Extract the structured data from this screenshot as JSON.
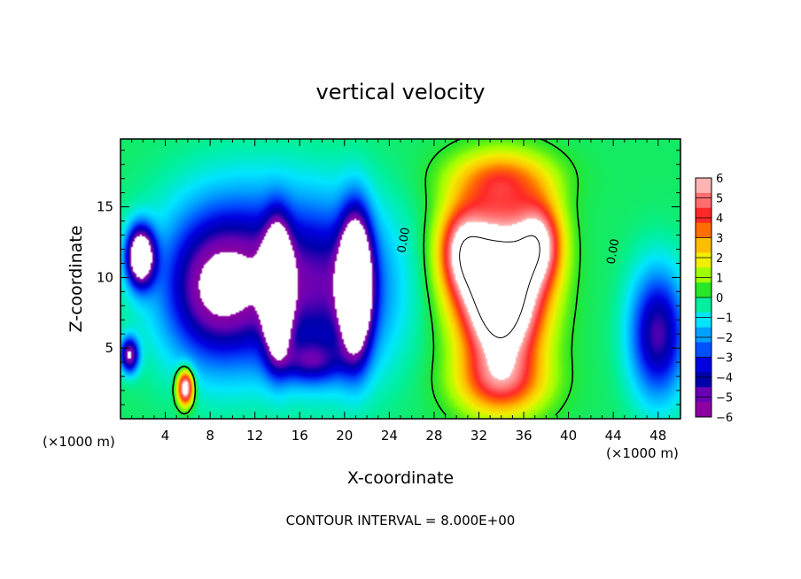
{
  "chart_data": {
    "type": "heatmap",
    "title": "vertical velocity",
    "xlabel": "X-coordinate",
    "ylabel": "Z-coordinate",
    "x_unit": "(×1000 m)",
    "y_unit": "(×1000 m)",
    "footer": "CONTOUR INTERVAL = 8.000E+00",
    "xlim": [
      0,
      50
    ],
    "ylim": [
      0,
      19.8
    ],
    "x_ticks": [
      "4",
      "8",
      "12",
      "16",
      "20",
      "24",
      "28",
      "32",
      "36",
      "40",
      "44",
      "48"
    ],
    "y_ticks": [
      "5",
      "10",
      "15"
    ],
    "colorbar": {
      "min": -6,
      "max": 6,
      "labels": [
        "6",
        "5",
        "4",
        "3",
        "2",
        "1",
        "0",
        "−1",
        "−2",
        "−3",
        "−4",
        "−5",
        "−6"
      ],
      "colors": [
        "#ffb4b4",
        "#ff6e6e",
        "#ff2828",
        "#ff6e00",
        "#ffbe00",
        "#f0f000",
        "#a0ff00",
        "#28e628",
        "#00f0a0",
        "#00e6ff",
        "#00a0ff",
        "#0050ff",
        "#0000e0",
        "#0000aa",
        "#6a00b4",
        "#8c00a0"
      ]
    },
    "contour_labels": [
      "0.00",
      "0.00"
    ],
    "features": [
      {
        "kind": "updraft",
        "x": 34,
        "z": 9,
        "sx": 3.6,
        "sz": 5.5,
        "w": 11
      },
      {
        "kind": "updraft",
        "x": 30.5,
        "z": 12,
        "sx": 2.2,
        "sz": 3.2,
        "w": 5
      },
      {
        "kind": "updraft",
        "x": 37.5,
        "z": 12.5,
        "sx": 2.0,
        "sz": 3.0,
        "w": 5
      },
      {
        "kind": "updraft",
        "x": 34,
        "z": 17,
        "sx": 4.5,
        "sz": 2.0,
        "w": 3
      },
      {
        "kind": "updraft",
        "x": 34,
        "z": 2.5,
        "sx": 4.0,
        "sz": 2.2,
        "w": 3
      },
      {
        "kind": "updraft",
        "x": 5.8,
        "z": 2.2,
        "sx": 0.7,
        "sz": 1.2,
        "w": 8
      },
      {
        "kind": "downdraft",
        "x": 14,
        "z": 9,
        "sx": 1.1,
        "sz": 4.0,
        "w": -11
      },
      {
        "kind": "downdraft",
        "x": 21,
        "z": 9.5,
        "sx": 1.3,
        "sz": 4.5,
        "w": -11
      },
      {
        "kind": "downdraft",
        "x": 1.8,
        "z": 11.5,
        "sx": 1.2,
        "sz": 2.0,
        "w": -9
      },
      {
        "kind": "downdraft",
        "x": 12,
        "z": 10,
        "sx": 7.5,
        "sz": 6.0,
        "w": -5
      },
      {
        "kind": "downdraft",
        "x": 20,
        "z": 9,
        "sx": 5.0,
        "sz": 6.0,
        "w": -3
      },
      {
        "kind": "downdraft",
        "x": 8,
        "z": 9,
        "sx": 4.0,
        "sz": 5.0,
        "w": -3
      },
      {
        "kind": "downdraft",
        "x": 48,
        "z": 6,
        "sx": 2.5,
        "sz": 4.5,
        "w": -5
      },
      {
        "kind": "downdraft",
        "x": 0.8,
        "z": 4.5,
        "sx": 0.8,
        "sz": 1.2,
        "w": -6
      },
      {
        "kind": "downdraft",
        "x": 17,
        "z": 4,
        "sx": 3.0,
        "sz": 1.5,
        "w": -3
      }
    ]
  }
}
